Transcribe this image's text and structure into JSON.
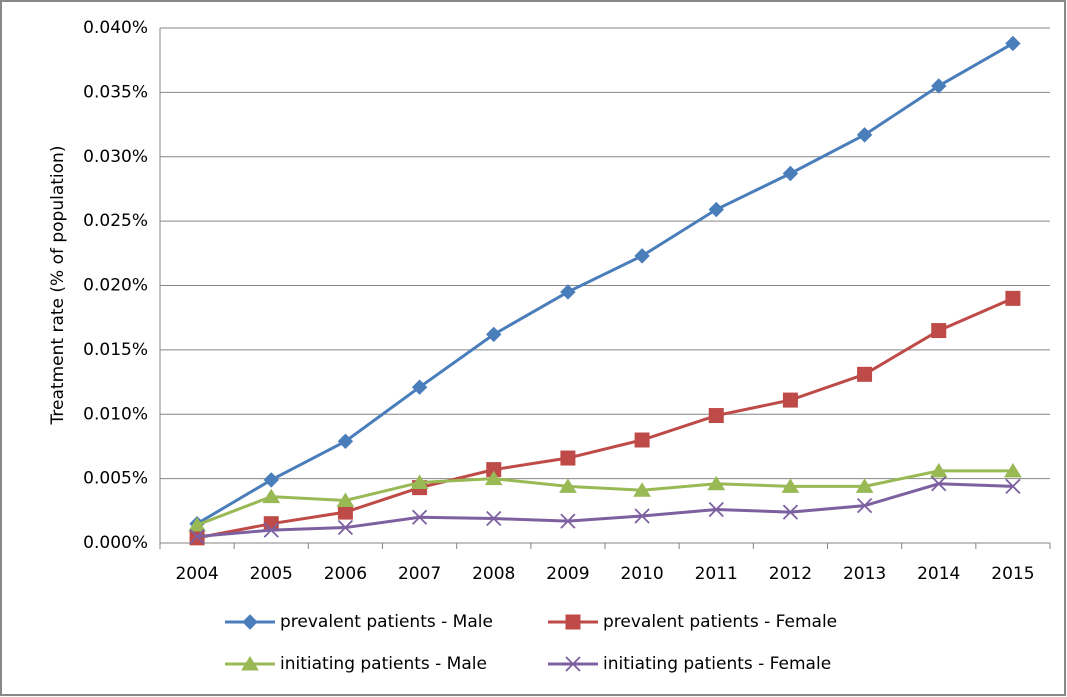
{
  "chart_data": {
    "type": "line",
    "y_label": "Treatment rate (% of population)",
    "categories": [
      "2004",
      "2005",
      "2006",
      "2007",
      "2008",
      "2009",
      "2010",
      "2011",
      "2012",
      "2013",
      "2014",
      "2015"
    ],
    "series": [
      {
        "name": "prevalent patients - Male",
        "color": "#4a7ebb",
        "marker": "diamond",
        "values": [
          0.0015,
          0.0049,
          0.0079,
          0.0121,
          0.0162,
          0.0195,
          0.0223,
          0.0259,
          0.0287,
          0.0317,
          0.0355,
          0.0388
        ]
      },
      {
        "name": "prevalent patients - Female",
        "color": "#be4b48",
        "marker": "square",
        "values": [
          0.0004,
          0.0015,
          0.0024,
          0.0043,
          0.0057,
          0.0066,
          0.008,
          0.0099,
          0.0111,
          0.0131,
          0.0165,
          0.019
        ]
      },
      {
        "name": "initiating patients - Male",
        "color": "#98b954",
        "marker": "triangle",
        "values": [
          0.0014,
          0.0036,
          0.0033,
          0.0047,
          0.005,
          0.0044,
          0.0041,
          0.0046,
          0.0044,
          0.0044,
          0.0056,
          0.0056
        ]
      },
      {
        "name": "initiating patients - Female",
        "color": "#7d60a0",
        "marker": "x",
        "values": [
          0.0005,
          0.001,
          0.0012,
          0.002,
          0.0019,
          0.0017,
          0.0021,
          0.0026,
          0.0024,
          0.0029,
          0.0046,
          0.0044
        ]
      }
    ],
    "ylim": [
      0,
      0.04
    ],
    "yticks": [
      {
        "value": 0,
        "label": "0.000%"
      },
      {
        "value": 0.005,
        "label": "0.005%"
      },
      {
        "value": 0.01,
        "label": "0.010%"
      },
      {
        "value": 0.015,
        "label": "0.015%"
      },
      {
        "value": 0.02,
        "label": "0.020%"
      },
      {
        "value": 0.025,
        "label": "0.025%"
      },
      {
        "value": 0.03,
        "label": "0.030%"
      },
      {
        "value": 0.035,
        "label": "0.035%"
      },
      {
        "value": 0.04,
        "label": "0.040%"
      }
    ],
    "grid": true,
    "legend": "bottom"
  }
}
